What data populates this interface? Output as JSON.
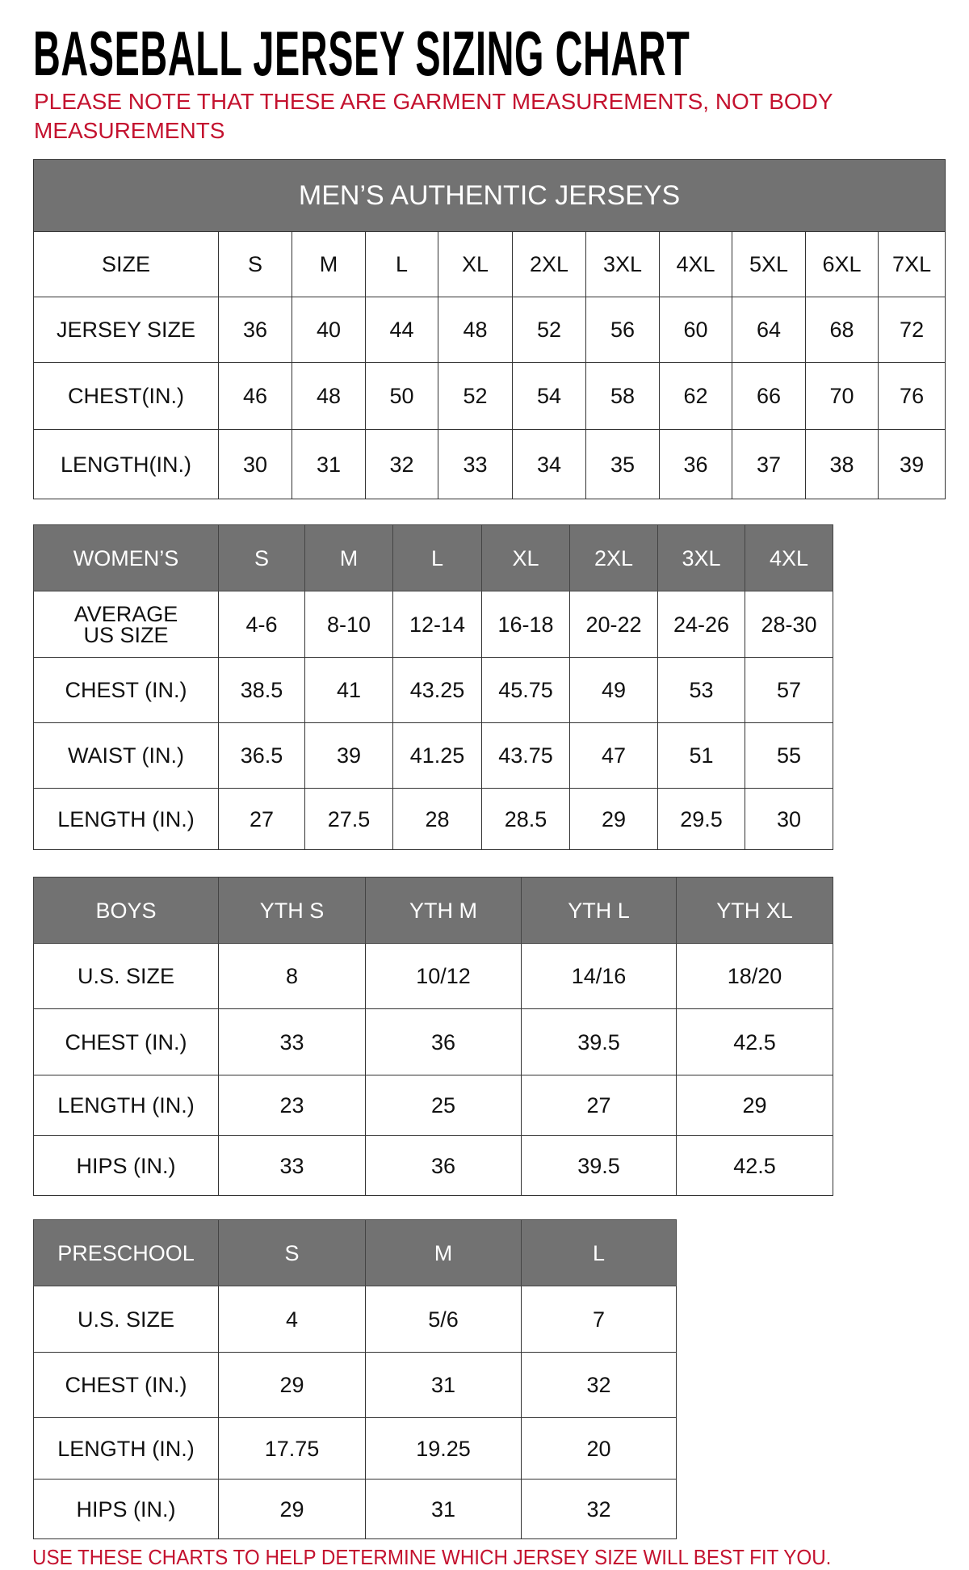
{
  "title": "BASEBALL JERSEY SIZING CHART",
  "note": "PLEASE NOTE THAT THESE ARE GARMENT MEASUREMENTS, NOT BODY MEASUREMENTS",
  "footer_note": "USE THESE CHARTS TO HELP DETERMINE WHICH JERSEY SIZE WILL BEST FIT YOU.",
  "colors": {
    "header_bg": "#727272",
    "note_red": "#c4122f"
  },
  "tables": [
    {
      "id": "mens",
      "banner": "MEN’S AUTHENTIC JERSEYS",
      "header": [
        "SIZE",
        "S",
        "M",
        "L",
        "XL",
        "2XL",
        "3XL",
        "4XL",
        "5XL",
        "6XL",
        "7XL"
      ],
      "header_style": "plain",
      "rows": [
        [
          "JERSEY SIZE",
          "36",
          "40",
          "44",
          "48",
          "52",
          "56",
          "60",
          "64",
          "68",
          "72"
        ],
        [
          "CHEST(IN.)",
          "46",
          "48",
          "50",
          "52",
          "54",
          "58",
          "62",
          "66",
          "70",
          "76"
        ],
        [
          "LENGTH(IN.)",
          "30",
          "31",
          "32",
          "33",
          "34",
          "35",
          "36",
          "37",
          "38",
          "39"
        ]
      ]
    },
    {
      "id": "womens",
      "header": [
        "WOMEN’S",
        "S",
        "M",
        "L",
        "XL",
        "2XL",
        "3XL",
        "4XL"
      ],
      "header_style": "gray",
      "rows": [
        [
          "AVERAGE US SIZE",
          "4-6",
          "8-10",
          "12-14",
          "16-18",
          "20-22",
          "24-26",
          "28-30"
        ],
        [
          "CHEST (IN.)",
          "38.5",
          "41",
          "43.25",
          "45.75",
          "49",
          "53",
          "57"
        ],
        [
          "WAIST (IN.)",
          "36.5",
          "39",
          "41.25",
          "43.75",
          "47",
          "51",
          "55"
        ],
        [
          "LENGTH (IN.)",
          "27",
          "27.5",
          "28",
          "28.5",
          "29",
          "29.5",
          "30"
        ]
      ]
    },
    {
      "id": "boys",
      "header": [
        "BOYS",
        "YTH S",
        "YTH M",
        "YTH L",
        "YTH XL"
      ],
      "header_style": "gray",
      "rows": [
        [
          "U.S. SIZE",
          "8",
          "10/12",
          "14/16",
          "18/20"
        ],
        [
          "CHEST (IN.)",
          "33",
          "36",
          "39.5",
          "42.5"
        ],
        [
          "LENGTH (IN.)",
          "23",
          "25",
          "27",
          "29"
        ],
        [
          "HIPS (IN.)",
          "33",
          "36",
          "39.5",
          "42.5"
        ]
      ]
    },
    {
      "id": "preschool",
      "header": [
        "PRESCHOOL",
        "S",
        "M",
        "L"
      ],
      "header_style": "gray",
      "rows": [
        [
          "U.S. SIZE",
          "4",
          "5/6",
          "7"
        ],
        [
          "CHEST (IN.)",
          "29",
          "31",
          "32"
        ],
        [
          "LENGTH (IN.)",
          "17.75",
          "19.25",
          "20"
        ],
        [
          "HIPS (IN.)",
          "29",
          "31",
          "32"
        ]
      ]
    }
  ]
}
